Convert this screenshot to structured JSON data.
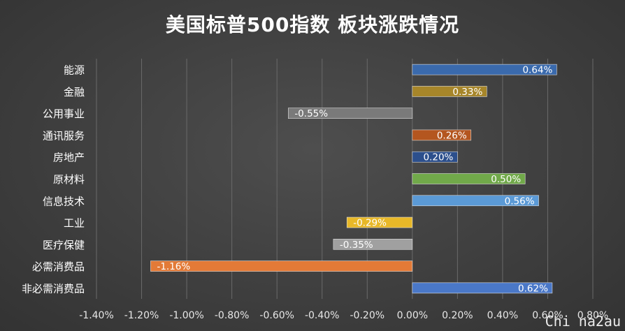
{
  "chart_data": {
    "type": "bar",
    "orientation": "horizontal",
    "title": "美国标普500指数 板块涨跌情况",
    "categories": [
      "能源",
      "金融",
      "公用事业",
      "通讯服务",
      "房地产",
      "原材料",
      "信息技术",
      "工业",
      "医疗保健",
      "必需消费品",
      "非必需消费品"
    ],
    "values": [
      0.64,
      0.33,
      -0.55,
      0.26,
      0.2,
      0.5,
      0.56,
      -0.29,
      -0.35,
      -1.16,
      0.62
    ],
    "value_labels": [
      "0.64%",
      "0.33%",
      "-0.55%",
      "0.26%",
      "0.20%",
      "0.50%",
      "0.56%",
      "-0.29%",
      "-0.35%",
      "-1.16%",
      "0.62%"
    ],
    "bar_colors": [
      "#3a6aad",
      "#a7862a",
      "#7a7a7a",
      "#b4561f",
      "#2c4f8c",
      "#71a94a",
      "#5b9ad6",
      "#e8b828",
      "#a0a0a0",
      "#e37a37",
      "#4a78c8"
    ],
    "xlim": [
      -1.4,
      0.8
    ],
    "x_ticks": [
      -1.4,
      -1.2,
      -1.0,
      -0.8,
      -0.6,
      -0.4,
      -0.2,
      0.0,
      0.2,
      0.4,
      0.6,
      0.8
    ],
    "x_tick_labels": [
      "-1.40%",
      "-1.20%",
      "-1.00%",
      "-0.80%",
      "-0.60%",
      "-0.40%",
      "-0.20%",
      "0.00%",
      "0.20%",
      "0.40%",
      "0.60%",
      "0.80%"
    ],
    "grid": true,
    "legend": "none",
    "xlabel": "",
    "ylabel": ""
  },
  "watermark": "Chi na2au"
}
